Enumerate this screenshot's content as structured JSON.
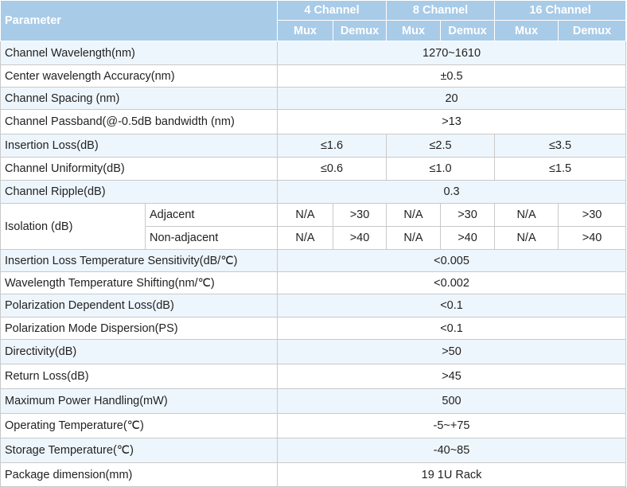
{
  "header": {
    "parameter": "Parameter",
    "groups": [
      "4 Channel",
      "8 Channel",
      "16 Channel"
    ],
    "sub": [
      "Mux",
      "Demux",
      "Mux",
      "Demux",
      "Mux",
      "Demux"
    ]
  },
  "rows": {
    "channel_wavelength": {
      "label": "Channel Wavelength(nm)",
      "value": "1270~1610"
    },
    "center_accuracy": {
      "label": "Center wavelength Accuracy(nm)",
      "value": "±0.5"
    },
    "channel_spacing": {
      "label": "Channel Spacing (nm)",
      "value": "20"
    },
    "passband": {
      "label": "Channel Passband(@-0.5dB bandwidth (nm)",
      "value": ">13"
    },
    "insertion_loss": {
      "label": "Insertion Loss(dB)",
      "values": [
        "≤1.6",
        "≤2.5",
        "≤3.5"
      ]
    },
    "uniformity": {
      "label": "Channel Uniformity(dB)",
      "values": [
        "≤0.6",
        "≤1.0",
        "≤1.5"
      ]
    },
    "ripple": {
      "label": "Channel Ripple(dB)",
      "value": "0.3"
    },
    "isolation": {
      "label": "Isolation (dB)",
      "adjacent": {
        "label": "Adjacent",
        "values": [
          "N/A",
          ">30",
          "N/A",
          ">30",
          "N/A",
          ">30"
        ]
      },
      "non_adjacent": {
        "label": "Non-adjacent",
        "values": [
          "N/A",
          ">40",
          "N/A",
          ">40",
          "N/A",
          ">40"
        ]
      }
    },
    "il_temp": {
      "label": "Insertion Loss Temperature Sensitivity(dB/℃)",
      "value": "<0.005"
    },
    "wl_temp": {
      "label": "Wavelength Temperature Shifting(nm/℃)",
      "value": "<0.002"
    },
    "pdl": {
      "label": "Polarization Dependent Loss(dB)",
      "value": "<0.1"
    },
    "pmd": {
      "label": "Polarization Mode Dispersion(PS)",
      "value": "<0.1"
    },
    "directivity": {
      "label": "Directivity(dB)",
      "value": ">50"
    },
    "return_loss": {
      "label": "Return Loss(dB)",
      "value": ">45"
    },
    "max_power": {
      "label": "Maximum Power Handling(mW)",
      "value": "500"
    },
    "op_temp": {
      "label": "Operating Temperature(℃)",
      "value": "-5~+75"
    },
    "storage_temp": {
      "label": "Storage Temperature(℃)",
      "value": "-40~85"
    },
    "package": {
      "label": "Package dimension(mm)",
      "value": "19 1U Rack"
    }
  }
}
